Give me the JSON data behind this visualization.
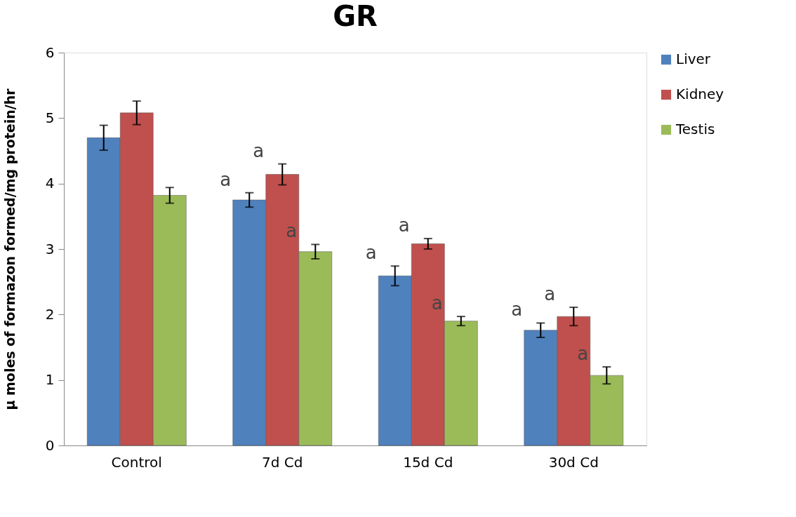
{
  "chart_data": {
    "type": "bar",
    "title": "GR",
    "ylabel": "µ moles of formazon formed/mg protein/hr",
    "categories": [
      "Control",
      "7d Cd",
      "15d Cd",
      "30d Cd"
    ],
    "series": [
      {
        "name": "Liver",
        "color": "#4f81bd",
        "values": [
          4.7,
          3.75,
          2.59,
          1.76
        ],
        "errors": [
          0.19,
          0.11,
          0.15,
          0.11
        ]
      },
      {
        "name": "Kidney",
        "color": "#c0504d",
        "values": [
          5.08,
          4.14,
          3.08,
          1.97
        ],
        "errors": [
          0.18,
          0.16,
          0.08,
          0.14
        ]
      },
      {
        "name": "Testis",
        "color": "#9bbb59",
        "values": [
          3.82,
          2.96,
          1.9,
          1.07
        ],
        "errors": [
          0.12,
          0.11,
          0.07,
          0.13
        ]
      }
    ],
    "ylim": [
      0,
      6
    ],
    "yticks": [
      0,
      1,
      2,
      3,
      4,
      5,
      6
    ],
    "grid": false,
    "legend": "top right",
    "annotations": [
      "a",
      "a",
      "a",
      "a",
      "a",
      "a",
      "a",
      "a",
      "a"
    ]
  }
}
